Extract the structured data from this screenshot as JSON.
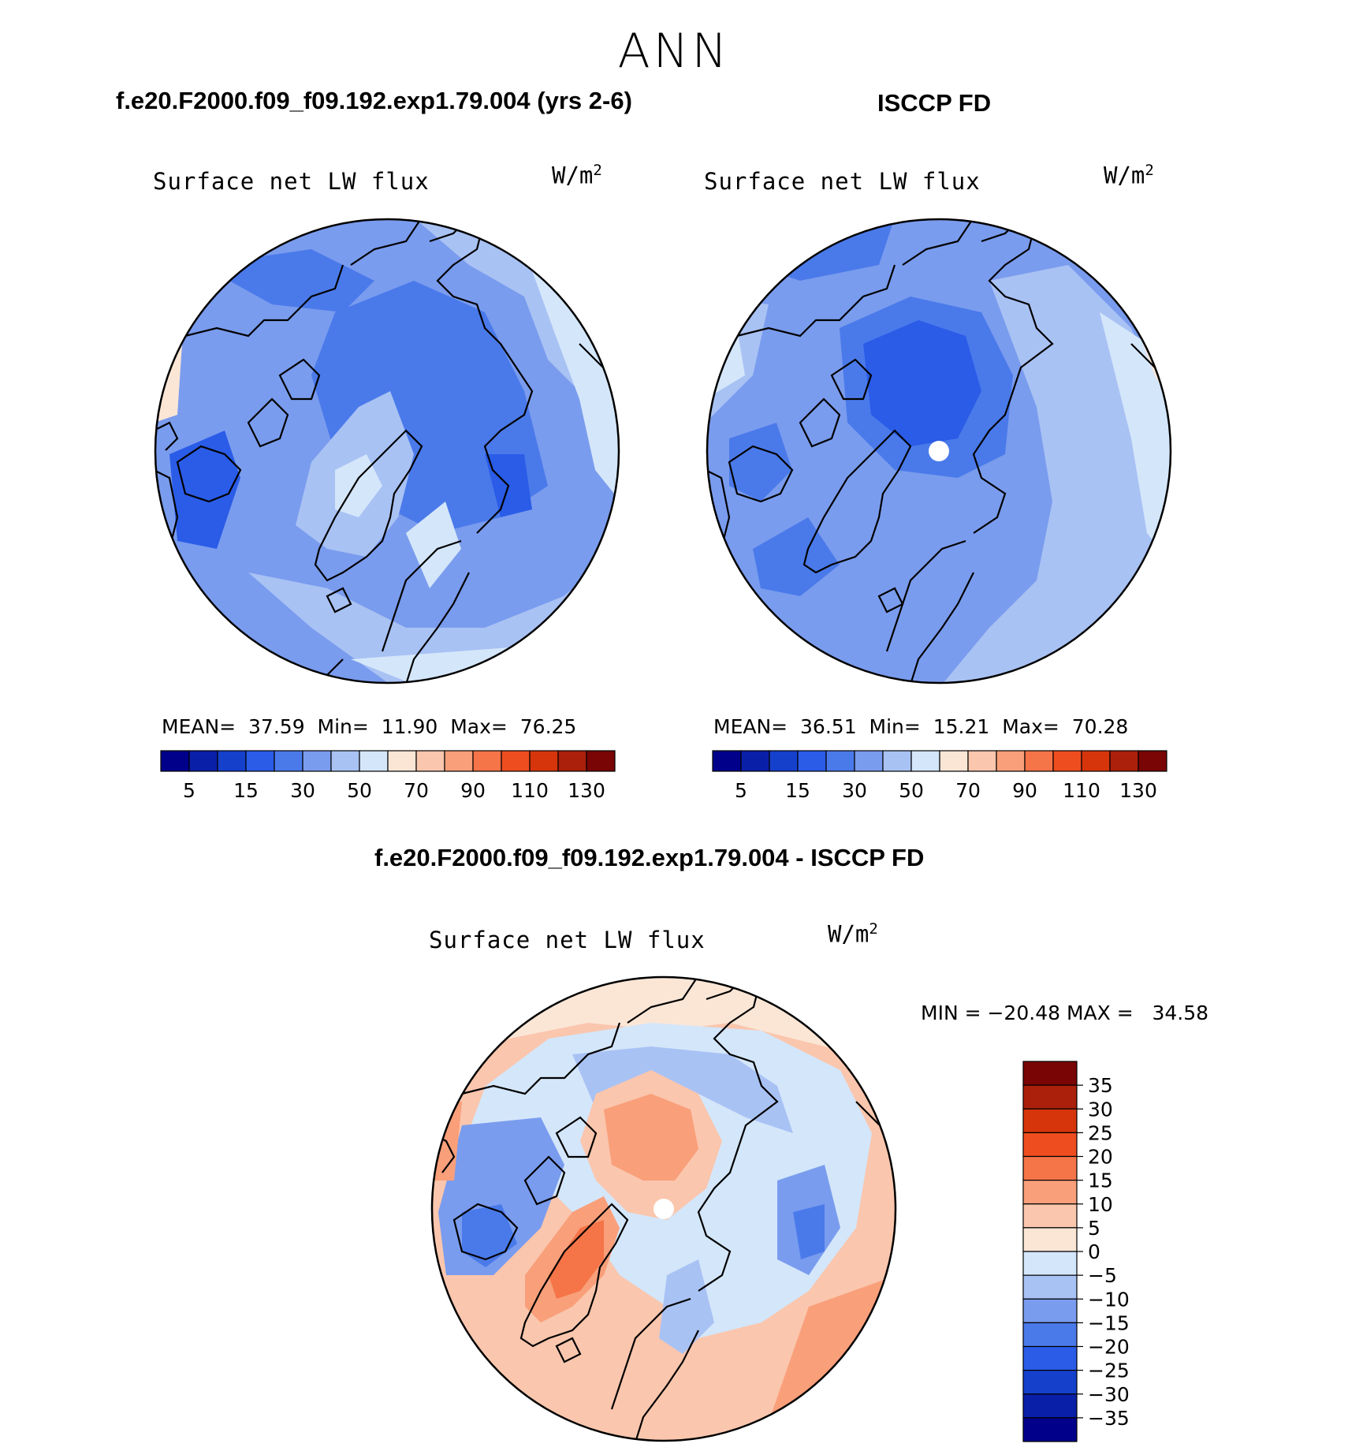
{
  "figure": {
    "season": "ANN",
    "diff_title": "f.e20.F2000.f09_f09.192.exp1.79.004 - ISCCP FD"
  },
  "panels": [
    {
      "title": "f.e20.F2000.f09_f09.192.exp1.79.004 (yrs 2-6)",
      "variable": "Surface net LW flux",
      "units_base": "W/m",
      "units_exp": "2",
      "stats": {
        "mean_label": "MEAN=",
        "mean": "37.59",
        "min_label": "Min=",
        "min": "11.90",
        "max_label": "Max=",
        "max": "76.25"
      }
    },
    {
      "title": "ISCCP FD",
      "variable": "Surface net LW flux",
      "units_base": "W/m",
      "units_exp": "2",
      "stats": {
        "mean_label": "MEAN=",
        "mean": "36.51",
        "min_label": "Min=",
        "min": "15.21",
        "max_label": "Max=",
        "max": "70.28"
      }
    },
    {
      "title": "f.e20.F2000.f09_f09.192.exp1.79.004 - ISCCP FD",
      "variable": "Surface net LW flux",
      "units_base": "W/m",
      "units_exp": "2",
      "stats_text": "MIN = −20.48 MAX =   34.58"
    }
  ],
  "colorbars": {
    "absolute": {
      "colors": [
        "#00008B",
        "#0A1FA8",
        "#1540CC",
        "#2A5CE8",
        "#4A7AEA",
        "#7A9CEE",
        "#A9C2F4",
        "#D4E6FA",
        "#FBE6D6",
        "#FAC6AD",
        "#F99F7A",
        "#F57448",
        "#EE4D1F",
        "#D6350C",
        "#AB200A",
        "#7A0505"
      ],
      "tick_labels": [
        "5",
        "15",
        "30",
        "50",
        "70",
        "90",
        "110",
        "130"
      ]
    },
    "difference": {
      "colors": [
        "#7A0505",
        "#AB200A",
        "#D6350C",
        "#EE4D1F",
        "#F57448",
        "#F99F7A",
        "#FAC6AD",
        "#FBE6D6",
        "#D4E6FA",
        "#A9C2F4",
        "#7A9CEE",
        "#4A7AEA",
        "#2A5CE8",
        "#1540CC",
        "#0A1FA8",
        "#00008B"
      ],
      "tick_labels": [
        "35",
        "30",
        "25",
        "20",
        "15",
        "10",
        "5",
        "0",
        "−5",
        "−10",
        "−15",
        "−20",
        "−25",
        "−30",
        "−35"
      ]
    }
  }
}
